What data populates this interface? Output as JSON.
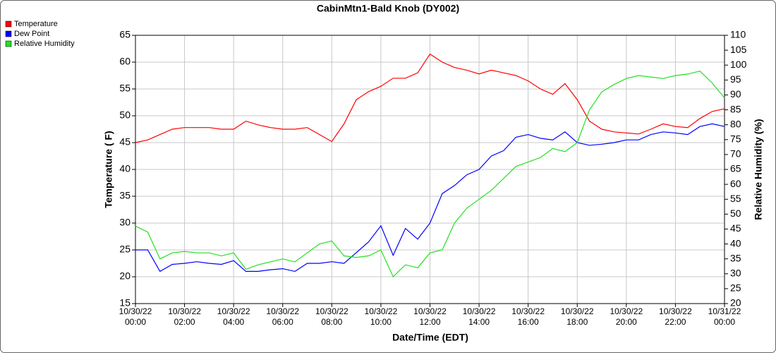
{
  "chart_data": {
    "type": "line",
    "title": "CabinMtn1-Bald Knob (DY002)",
    "x_label": "Date/Time (EDT)",
    "y_label": "Temperature ( F)",
    "y2_label": "Relative Humidity (%)",
    "x": [
      0,
      0.5,
      1,
      1.5,
      2,
      2.5,
      3,
      3.5,
      4,
      4.5,
      5,
      5.5,
      6,
      6.5,
      7,
      7.5,
      8,
      8.5,
      9,
      9.5,
      10,
      10.5,
      11,
      11.5,
      12,
      12.5,
      13,
      13.5,
      14,
      14.5,
      15,
      15.5,
      16,
      16.5,
      17,
      17.5,
      18,
      18.5,
      19,
      19.5,
      20,
      20.5,
      21,
      21.5,
      22,
      22.5,
      23,
      23.5,
      24
    ],
    "xlim": [
      0,
      24
    ],
    "xticks": [
      {
        "value": 0,
        "label": "10/30/22 00:00"
      },
      {
        "value": 2,
        "label": "10/30/22 02:00"
      },
      {
        "value": 4,
        "label": "10/30/22 04:00"
      },
      {
        "value": 6,
        "label": "10/30/22 06:00"
      },
      {
        "value": 8,
        "label": "10/30/22 08:00"
      },
      {
        "value": 10,
        "label": "10/30/22 10:00"
      },
      {
        "value": 12,
        "label": "10/30/22 12:00"
      },
      {
        "value": 14,
        "label": "10/30/22 14:00"
      },
      {
        "value": 16,
        "label": "10/30/22 16:00"
      },
      {
        "value": 18,
        "label": "10/30/22 18:00"
      },
      {
        "value": 20,
        "label": "10/30/22 20:00"
      },
      {
        "value": 22,
        "label": "10/30/22 22:00"
      },
      {
        "value": 24,
        "label": "10/31/22 00:00"
      }
    ],
    "ylim": [
      15,
      65
    ],
    "yticks": [
      15,
      20,
      25,
      30,
      35,
      40,
      45,
      50,
      55,
      60,
      65
    ],
    "y2lim": [
      20,
      110
    ],
    "y2ticks": [
      20,
      25,
      30,
      35,
      40,
      45,
      50,
      55,
      60,
      65,
      70,
      75,
      80,
      85,
      90,
      95,
      100,
      105,
      110
    ],
    "grid": true,
    "legend": "top-left",
    "series": [
      {
        "name": "Temperature",
        "color": "#ff0000",
        "values": [
          45,
          45.5,
          46.5,
          47.5,
          47.8,
          47.8,
          47.8,
          47.5,
          47.5,
          49,
          48.3,
          47.8,
          47.5,
          47.5,
          47.8,
          46.5,
          45.2,
          48.5,
          53,
          54.5,
          55.5,
          57,
          57,
          58,
          61.5,
          60,
          59,
          58.5,
          57.8,
          58.5,
          58,
          57.5,
          56.5,
          55,
          54,
          56,
          53,
          49,
          47.5,
          47,
          46.8,
          46.6,
          47.5,
          48.5,
          48,
          47.8,
          49.5,
          50.8,
          51.3
        ]
      },
      {
        "name": "Dew Point",
        "color": "#0000ff",
        "values": [
          25,
          25,
          21,
          22.3,
          22.5,
          22.8,
          22.5,
          22.3,
          23,
          21,
          21,
          21.3,
          21.5,
          21,
          22.5,
          22.5,
          22.8,
          22.5,
          24.5,
          26.5,
          29.5,
          24,
          29,
          27,
          30,
          35.5,
          37,
          39,
          40,
          42.5,
          43.5,
          46,
          46.5,
          45.8,
          45.5,
          47,
          45,
          44.5,
          44.7,
          45,
          45.5,
          45.5,
          46.5,
          47,
          46.8,
          46.5,
          48,
          48.5,
          48
        ]
      },
      {
        "name": "Relative Humidity",
        "color": "#22e022",
        "axis": "y2",
        "values": [
          46,
          44,
          35,
          37,
          37.5,
          37,
          37,
          36,
          37,
          31.5,
          33,
          34,
          35,
          34,
          37,
          40,
          41,
          36,
          35.5,
          36,
          38,
          29,
          33,
          32,
          37,
          38,
          47,
          52,
          55,
          58,
          62,
          66,
          67.5,
          69,
          72,
          71,
          74,
          85,
          91,
          93.5,
          95.5,
          96.5,
          96,
          95.5,
          96.5,
          97,
          98,
          94,
          89
        ]
      }
    ]
  }
}
